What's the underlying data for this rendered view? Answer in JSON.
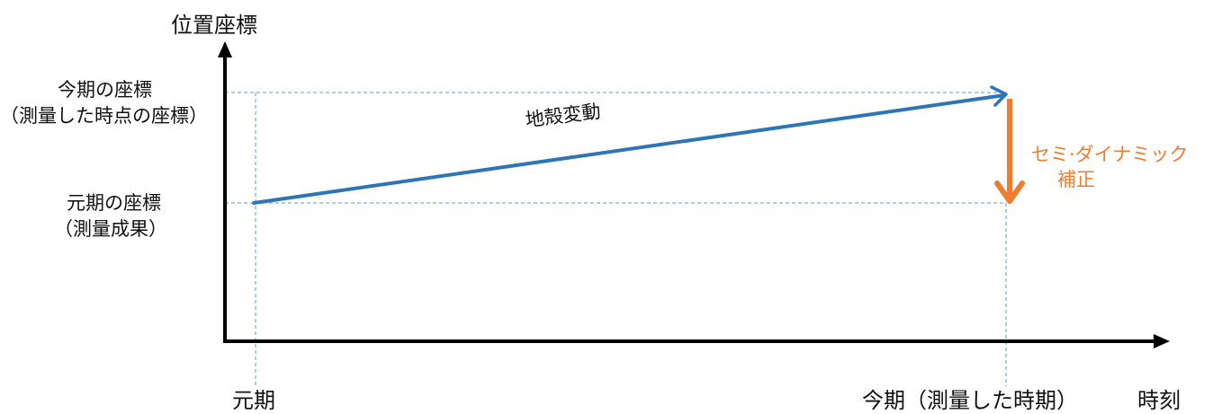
{
  "diagram": {
    "y_axis_title": "位置座標",
    "x_axis_title": "時刻",
    "current_coord_line1": "今期の座標",
    "current_coord_line2": "（測量した時点の座標）",
    "original_coord_line1": "元期の座標",
    "original_coord_line2": "（測量成果）",
    "crustal_movement": "地殻変動",
    "correction_line1": "セミ·ダイナミック",
    "correction_line2": "補正",
    "x_original_epoch": "元期",
    "x_current_epoch": "今期（測量した時期）"
  },
  "colors": {
    "axis": "#000000",
    "movement_arrow": "#2E75B6",
    "correction_arrow": "#ED7D31",
    "guide_lines": "#5B9BD5"
  }
}
